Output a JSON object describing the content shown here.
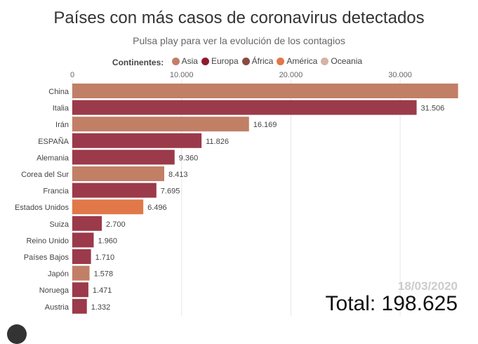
{
  "title": "Países con más casos de coronavirus detectados",
  "subtitle": "Pulsa play para ver la evolución de los contagios",
  "legend": {
    "label": "Continentes:",
    "items": [
      {
        "name": "Asia",
        "color": "#c17f66"
      },
      {
        "name": "Europa",
        "color": "#8e1c31"
      },
      {
        "name": "África",
        "color": "#8b4a42"
      },
      {
        "name": "América",
        "color": "#e0784a"
      },
      {
        "name": "Oceania",
        "color": "#d4b4a4"
      }
    ]
  },
  "date": "18/03/2020",
  "total": "Total: 198.625",
  "chart_data": {
    "type": "bar",
    "orientation": "horizontal",
    "xlim": [
      0,
      35300
    ],
    "grid": true,
    "ticks": [
      {
        "value": 0,
        "label": "0"
      },
      {
        "value": 10000,
        "label": "10.000"
      },
      {
        "value": 20000,
        "label": "20.000"
      },
      {
        "value": 30000,
        "label": "30.000"
      }
    ],
    "bars": [
      {
        "category": "China",
        "value": 35300,
        "label": "",
        "continent": "Asia"
      },
      {
        "category": "Italia",
        "value": 31506,
        "label": "31.506",
        "continent": "Europa"
      },
      {
        "category": "Irán",
        "value": 16169,
        "label": "16.169",
        "continent": "Asia"
      },
      {
        "category": "ESPAÑA",
        "value": 11826,
        "label": "11.826",
        "continent": "Europa"
      },
      {
        "category": "Alemania",
        "value": 9360,
        "label": "9.360",
        "continent": "Europa"
      },
      {
        "category": "Corea del Sur",
        "value": 8413,
        "label": "8.413",
        "continent": "Asia"
      },
      {
        "category": "Francia",
        "value": 7695,
        "label": "7.695",
        "continent": "Europa"
      },
      {
        "category": "Estados Unidos",
        "value": 6496,
        "label": "6.496",
        "continent": "América"
      },
      {
        "category": "Suiza",
        "value": 2700,
        "label": "2.700",
        "continent": "Europa"
      },
      {
        "category": "Reino Unido",
        "value": 1960,
        "label": "1.960",
        "continent": "Europa"
      },
      {
        "category": "Países Bajos",
        "value": 1710,
        "label": "1.710",
        "continent": "Europa"
      },
      {
        "category": "Japón",
        "value": 1578,
        "label": "1.578",
        "continent": "Asia"
      },
      {
        "category": "Noruega",
        "value": 1471,
        "label": "1.471",
        "continent": "Europa"
      },
      {
        "category": "Austria",
        "value": 1332,
        "label": "1.332",
        "continent": "Europa"
      }
    ]
  }
}
